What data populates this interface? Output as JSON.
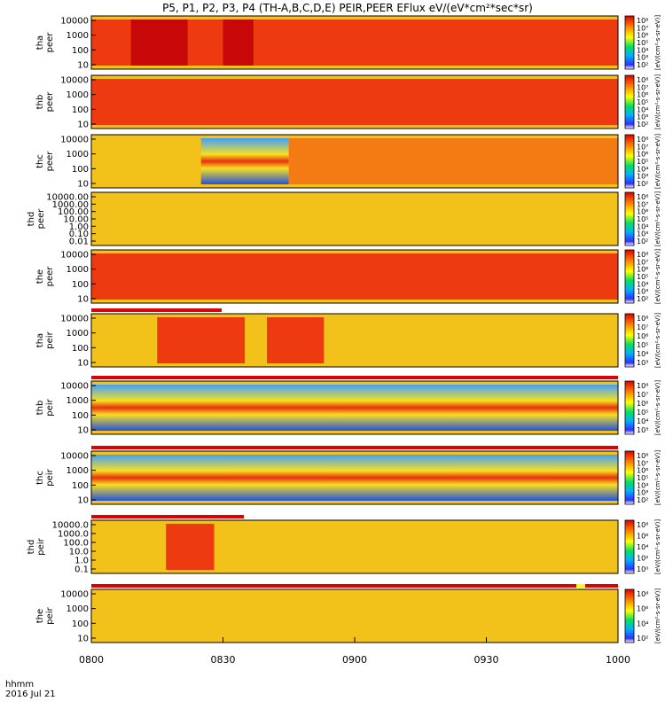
{
  "chart_data": {
    "type": "heatmap",
    "title": "P5, P1, P2, P3, P4 (TH-A,B,C,D,E) PEIR,PEER EFlux eV/(eV*cm²*sec*sr)",
    "x_ticks": [
      "0800",
      "0830",
      "0900",
      "0930",
      "1000"
    ],
    "x_range_minutes": [
      0,
      120
    ],
    "x_footer": {
      "line1": "hhmm",
      "line2": "2016 Jul 21"
    },
    "colorbar_label": "[eV/(cm²-s-sr-eV)]",
    "panels": [
      {
        "name": "tha-peer",
        "label": [
          "tha",
          "peer"
        ],
        "yticks": [
          "10000",
          "1000",
          "100",
          "10"
        ],
        "colorbar_ticks": [
          "10⁸",
          "10⁷",
          "10⁶",
          "10⁵",
          "10⁴",
          "10³",
          "10²"
        ],
        "bands": [
          {
            "start": 0,
            "end": 9,
            "level": "high"
          },
          {
            "start": 9,
            "end": 22,
            "level": "very-high"
          },
          {
            "start": 22,
            "end": 30,
            "level": "high"
          },
          {
            "start": 30,
            "end": 37,
            "level": "very-high"
          },
          {
            "start": 37,
            "end": 120,
            "level": "high"
          }
        ]
      },
      {
        "name": "thb-peer",
        "label": [
          "thb",
          "peer"
        ],
        "yticks": [
          "10000",
          "1000",
          "100",
          "10"
        ],
        "colorbar_ticks": [
          "10⁸",
          "10⁷",
          "10⁶",
          "10⁵",
          "10⁴",
          "10³",
          "10²"
        ],
        "bands": [
          {
            "start": 0,
            "end": 120,
            "level": "high"
          }
        ]
      },
      {
        "name": "thc-peer",
        "label": [
          "thc",
          "peer"
        ],
        "yticks": [
          "10000",
          "1000",
          "100",
          "10"
        ],
        "colorbar_ticks": [
          "10⁸",
          "10⁷",
          "10⁶",
          "10⁵",
          "10⁴",
          "10³",
          "10²"
        ],
        "bands": [
          {
            "start": 0,
            "end": 25,
            "level": "medium"
          },
          {
            "start": 25,
            "end": 45,
            "level": "low"
          },
          {
            "start": 45,
            "end": 120,
            "level": "medium-high"
          }
        ]
      },
      {
        "name": "thd-peer",
        "label": [
          "thd",
          "peer"
        ],
        "yticks": [
          "10000.00",
          "1000.00",
          "100.00",
          "10.00",
          "1.00",
          "0.10",
          "0.01"
        ],
        "colorbar_ticks": [
          "10⁸",
          "10⁷",
          "10⁶",
          "10⁵",
          "10⁴",
          "10³",
          "10²"
        ],
        "bands": [
          {
            "start": 0,
            "end": 120,
            "level": "medium"
          }
        ]
      },
      {
        "name": "the-peer",
        "label": [
          "the",
          "peer"
        ],
        "yticks": [
          "10000",
          "1000",
          "100",
          "10"
        ],
        "colorbar_ticks": [
          "10⁸",
          "10⁷",
          "10⁶",
          "10⁵",
          "10⁴",
          "10³",
          "10²"
        ],
        "bands": [
          {
            "start": 0,
            "end": 120,
            "level": "high"
          }
        ]
      },
      {
        "name": "tha-peir",
        "label": [
          "tha",
          "peir"
        ],
        "yticks": [
          "10000",
          "1000",
          "100",
          "10"
        ],
        "colorbar_ticks": [
          "10⁸",
          "10⁷",
          "10⁶",
          "10⁵",
          "10⁴",
          "10³"
        ],
        "bands": [
          {
            "start": 0,
            "end": 15,
            "level": "medium"
          },
          {
            "start": 15,
            "end": 35,
            "level": "high"
          },
          {
            "start": 35,
            "end": 40,
            "level": "medium"
          },
          {
            "start": 40,
            "end": 53,
            "level": "high"
          },
          {
            "start": 53,
            "end": 120,
            "level": "medium"
          }
        ]
      },
      {
        "name": "thb-peir",
        "label": [
          "thb",
          "peir"
        ],
        "yticks": [
          "10000",
          "1000",
          "100",
          "10"
        ],
        "colorbar_ticks": [
          "10⁸",
          "10⁷",
          "10⁶",
          "10⁵",
          "10⁴",
          "10³"
        ],
        "bands": [
          {
            "start": 0,
            "end": 120,
            "level": "low"
          }
        ]
      },
      {
        "name": "thc-peir",
        "label": [
          "thc",
          "peir"
        ],
        "yticks": [
          "10000",
          "1000",
          "100",
          "10"
        ],
        "colorbar_ticks": [
          "10⁸",
          "10⁷",
          "10⁶",
          "10⁵",
          "10⁴",
          "10³",
          "10²"
        ],
        "bands": [
          {
            "start": 0,
            "end": 120,
            "level": "low"
          }
        ]
      },
      {
        "name": "thd-peir",
        "label": [
          "thd",
          "peir"
        ],
        "yticks": [
          "10000.0",
          "1000.0",
          "100.0",
          "10.0",
          "1.0",
          "0.1"
        ],
        "colorbar_ticks": [
          "10⁸",
          "10⁶",
          "10⁴",
          "10²",
          "10⁰"
        ],
        "bands": [
          {
            "start": 0,
            "end": 17,
            "level": "medium"
          },
          {
            "start": 17,
            "end": 28,
            "level": "high"
          },
          {
            "start": 28,
            "end": 120,
            "level": "medium"
          }
        ]
      },
      {
        "name": "the-peir",
        "label": [
          "the",
          "peir"
        ],
        "yticks": [
          "10000",
          "1000",
          "100",
          "10"
        ],
        "colorbar_ticks": [
          "10⁸",
          "10⁶",
          "10⁴",
          "10²"
        ],
        "bands": [
          {
            "start": 0,
            "end": 120,
            "level": "medium"
          }
        ]
      }
    ]
  },
  "colors": {
    "very-high": "#c80808",
    "high": "#ee3a10",
    "medium-high": "#f47a14",
    "medium": "#f2c21a",
    "low": "#2e7cf0",
    "flag-red": "#e00000",
    "flag-yellow": "#ffff00"
  }
}
